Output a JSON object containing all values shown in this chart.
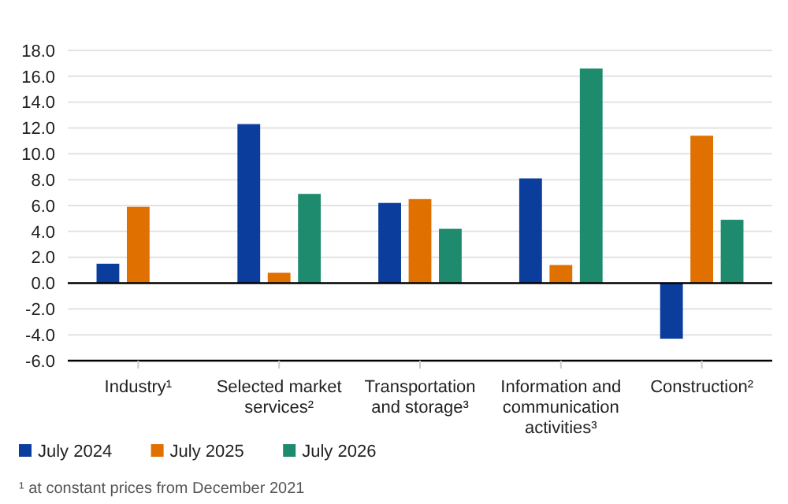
{
  "chart_data": {
    "type": "bar",
    "categories": [
      "Industry¹",
      "Selected market services²",
      "Transportation and storage³",
      "Information and communication activities³",
      "Construction²"
    ],
    "series": [
      {
        "name": "July 2024",
        "color": "#0b3d9c",
        "values": [
          1.5,
          12.3,
          6.2,
          8.1,
          -4.3
        ]
      },
      {
        "name": "July 2025",
        "color": "#e07000",
        "values": [
          5.9,
          0.8,
          6.5,
          1.4,
          11.4
        ]
      },
      {
        "name": "July 2026",
        "color": "#1e8a6e",
        "values": [
          null,
          6.9,
          4.2,
          16.6,
          4.9
        ]
      }
    ],
    "ylim": [
      -6,
      18
    ],
    "yticks": [
      {
        "value": -6,
        "label": "-6.0"
      },
      {
        "value": -4,
        "label": "-4.0"
      },
      {
        "value": -2,
        "label": "-2.0"
      },
      {
        "value": 0,
        "label": "0.0"
      },
      {
        "value": 2,
        "label": "2.0"
      },
      {
        "value": 4,
        "label": "4.0"
      },
      {
        "value": 6,
        "label": "6.0"
      },
      {
        "value": 8,
        "label": "8.0"
      },
      {
        "value": 10,
        "label": "10.0"
      },
      {
        "value": 12,
        "label": "12.0"
      },
      {
        "value": 14,
        "label": "14.0"
      },
      {
        "value": 16,
        "label": "16.0"
      },
      {
        "value": 18,
        "label": "18.0"
      }
    ],
    "grid": "y",
    "legend": "bottom left",
    "annotations": [
      "¹ at constant prices from December 2021"
    ]
  }
}
